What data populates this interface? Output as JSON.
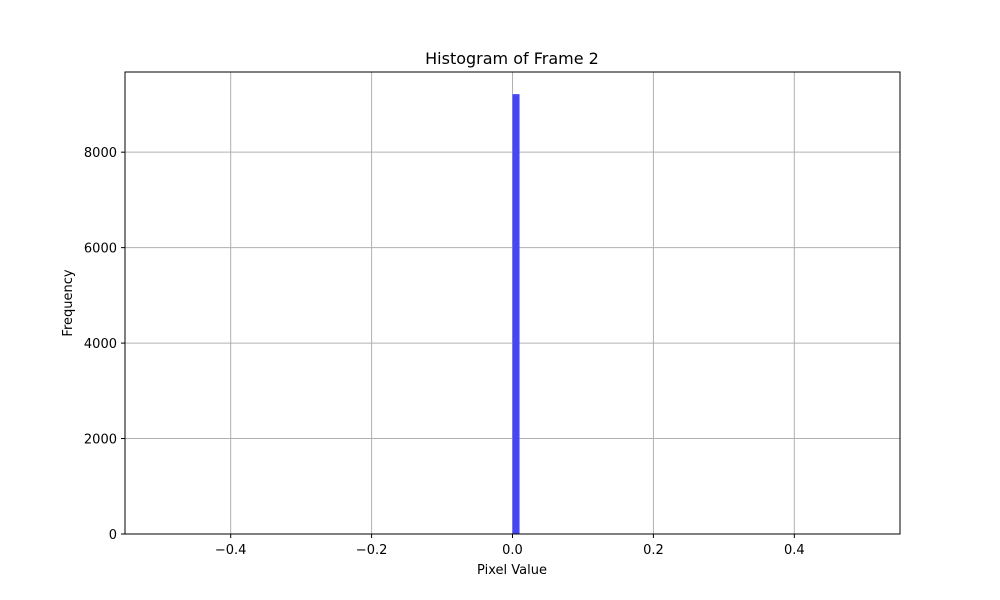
{
  "chart_data": {
    "type": "bar",
    "title": "Histogram of Frame 2",
    "xlabel": "Pixel Value",
    "ylabel": "Frequency",
    "xlim": [
      -0.55,
      0.55
    ],
    "ylim": [
      0,
      9680
    ],
    "x_ticks": [
      -0.4,
      -0.2,
      0.0,
      0.2,
      0.4
    ],
    "x_tick_labels": [
      "−0.4",
      "−0.2",
      "0.0",
      "0.2",
      "0.4"
    ],
    "y_ticks": [
      0,
      2000,
      4000,
      6000,
      8000
    ],
    "y_tick_labels": [
      "0",
      "2000",
      "4000",
      "6000",
      "8000"
    ],
    "grid": true,
    "bars": [
      {
        "x0": 0.0,
        "x1": 0.01,
        "value": 9216
      }
    ],
    "bar_color": "#4646f5"
  }
}
